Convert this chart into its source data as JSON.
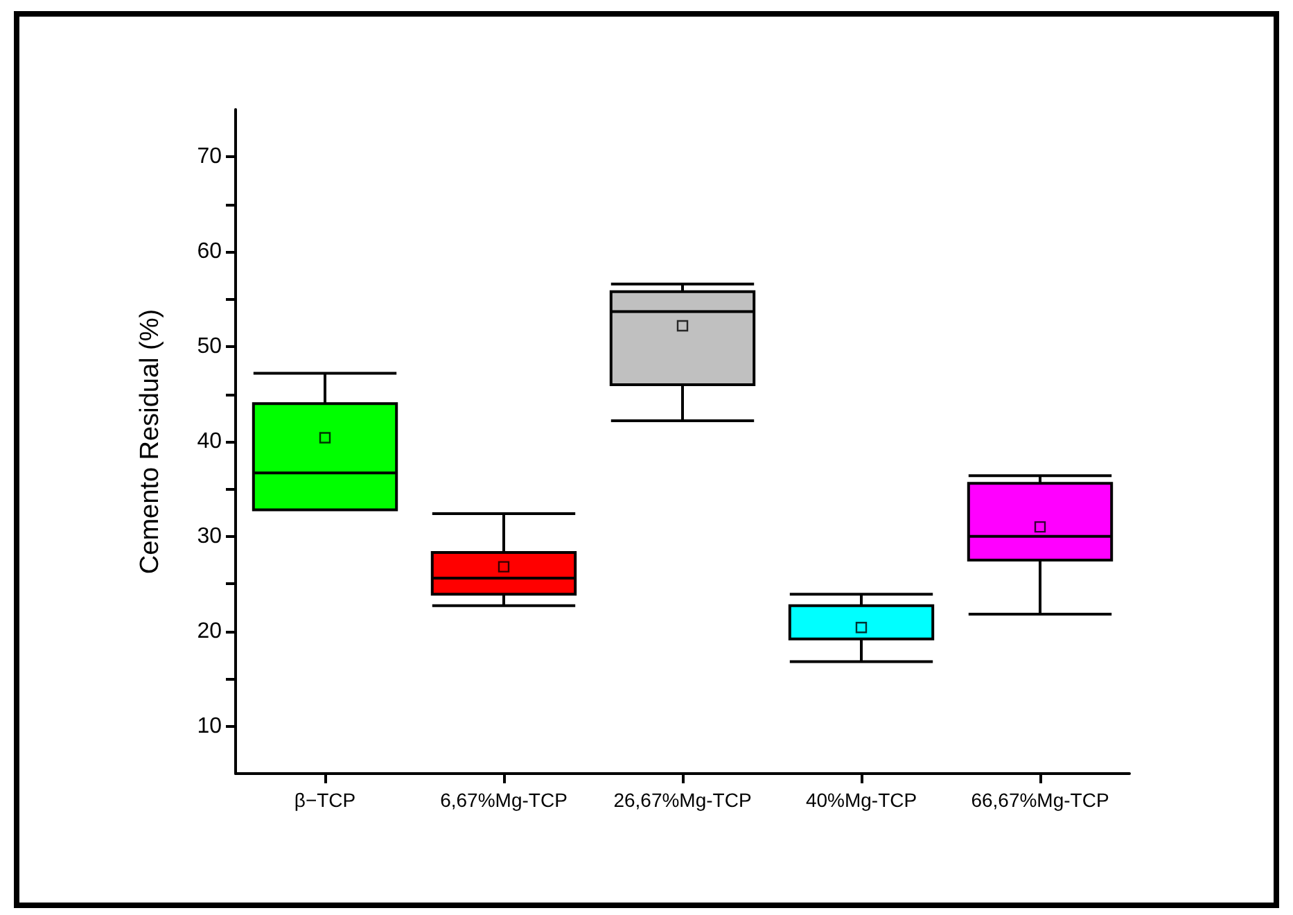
{
  "chart_data": {
    "type": "box",
    "ylabel": "Cemento Residual (%)",
    "categories": [
      "β−TCP",
      "6,67%Mg-TCP",
      "26,67%Mg-TCP",
      "40%Mg-TCP",
      "66,67%Mg-TCP"
    ],
    "colors": [
      "#00ff00",
      "#ff0000",
      "#c0c0c0",
      "#00ffff",
      "#ff00ff"
    ],
    "boxes": [
      {
        "low": 32.8,
        "q1": 32.8,
        "median": 36.7,
        "q3": 44.0,
        "high": 47.2,
        "mean": 40.4
      },
      {
        "low": 22.7,
        "q1": 23.9,
        "median": 25.6,
        "q3": 28.3,
        "high": 32.4,
        "mean": 26.8
      },
      {
        "low": 42.2,
        "q1": 46.0,
        "median": 53.7,
        "q3": 55.8,
        "high": 56.6,
        "mean": 52.2
      },
      {
        "low": 16.8,
        "q1": 19.2,
        "median": 19.2,
        "q3": 22.7,
        "high": 23.9,
        "mean": 20.4
      },
      {
        "low": 21.8,
        "q1": 27.5,
        "median": 30.0,
        "q3": 35.6,
        "high": 36.4,
        "mean": 31.0
      }
    ],
    "ylim": [
      5,
      75
    ],
    "yticks": [
      10,
      {
        "value": 15,
        "label": null
      },
      20,
      {
        "value": 25,
        "label": null
      },
      30,
      {
        "value": 35,
        "label": null
      },
      40,
      {
        "value": 45,
        "label": null
      },
      50,
      {
        "value": 55,
        "label": null
      },
      60,
      {
        "value": 65,
        "label": null
      },
      70
    ],
    "grid": false
  }
}
